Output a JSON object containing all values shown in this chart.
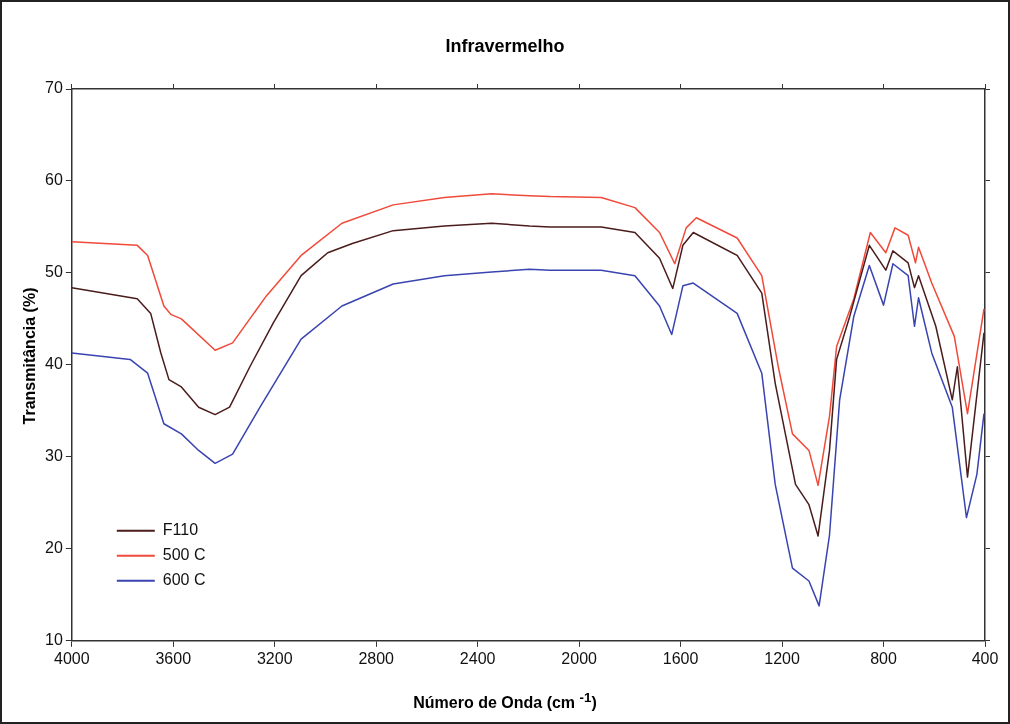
{
  "chart_data": {
    "type": "line",
    "title": "Infravermelho",
    "xlabel": "Número de Onda (cm $^{-1}$)",
    "ylabel": "Transmitância (%)",
    "xlim": [
      4000,
      400
    ],
    "xticks": [
      4000,
      3600,
      3200,
      2800,
      2400,
      2000,
      1600,
      1200,
      800,
      400
    ],
    "ylim": [
      10,
      70
    ],
    "yticks": [
      10,
      20,
      30,
      40,
      50,
      60,
      70
    ],
    "grid": false,
    "legend": "bottom left",
    "marker": "none",
    "line_style": "solid",
    "series": [
      {
        "name": "F110",
        "color": "#4a1c1c",
        "x": [
          4000,
          3742,
          3689,
          3649,
          3617,
          3568,
          3500,
          3435,
          3378,
          3298,
          3205,
          3096,
          2991,
          2894,
          2733,
          2531,
          2345,
          2196,
          2115,
          1913,
          1780,
          1683,
          1631,
          1591,
          1550,
          1377,
          1280,
          1227,
          1147,
          1094,
          1058,
          1013,
          985,
          933,
          856,
          791,
          763,
          703,
          678,
          662,
          594,
          529,
          509,
          469,
          404
        ],
        "values": [
          48.4,
          47.2,
          45.6,
          41.3,
          38.4,
          37.6,
          35.4,
          34.6,
          35.4,
          39.8,
          44.6,
          49.7,
          52.2,
          53.2,
          54.6,
          55.1,
          55.4,
          55.1,
          55.0,
          55.0,
          54.4,
          51.6,
          48.3,
          53.0,
          54.4,
          51.9,
          47.8,
          38.0,
          27.0,
          24.8,
          21.4,
          30.7,
          40.6,
          45.3,
          53.0,
          50.3,
          52.4,
          51.1,
          48.4,
          49.7,
          44.2,
          36.2,
          39.8,
          27.8,
          43.5
        ]
      },
      {
        "name": "500 C",
        "color": "#f04a3a",
        "x": [
          4000,
          3742,
          3701,
          3637,
          3610,
          3568,
          3435,
          3366,
          3233,
          3096,
          2935,
          2733,
          2531,
          2345,
          2196,
          2115,
          1913,
          1780,
          1683,
          1623,
          1578,
          1538,
          1377,
          1280,
          1215,
          1159,
          1094,
          1058,
          1013,
          985,
          917,
          852,
          791,
          755,
          703,
          674,
          662,
          610,
          521,
          469,
          404
        ],
        "values": [
          53.4,
          53.0,
          51.9,
          46.4,
          45.5,
          45.0,
          41.6,
          42.4,
          47.5,
          51.9,
          55.4,
          57.4,
          58.2,
          58.6,
          58.4,
          58.3,
          58.2,
          57.1,
          54.4,
          51.0,
          54.9,
          56.0,
          53.8,
          49.7,
          39.8,
          32.5,
          30.7,
          26.9,
          34.4,
          42.0,
          47.2,
          54.4,
          52.2,
          54.9,
          54.1,
          51.1,
          52.8,
          48.9,
          43.1,
          34.7,
          46.1
        ]
      },
      {
        "name": "600 C",
        "color": "#3a44b0",
        "x": [
          4000,
          3770,
          3701,
          3637,
          3568,
          3500,
          3435,
          3366,
          3258,
          3096,
          2935,
          2733,
          2531,
          2345,
          2196,
          2115,
          1913,
          1780,
          1683,
          1635,
          1591,
          1550,
          1377,
          1280,
          1227,
          1159,
          1094,
          1054,
          1013,
          973,
          917,
          856,
          800,
          763,
          703,
          678,
          662,
          610,
          529,
          473,
          432,
          404
        ],
        "values": [
          41.3,
          40.6,
          39.1,
          33.6,
          32.5,
          30.7,
          29.3,
          30.3,
          35.4,
          42.8,
          46.4,
          48.8,
          49.7,
          50.1,
          50.4,
          50.3,
          50.3,
          49.7,
          46.4,
          43.3,
          48.6,
          48.9,
          45.6,
          39.1,
          27.0,
          17.9,
          16.5,
          13.8,
          21.5,
          36.2,
          45.3,
          50.8,
          46.5,
          51.0,
          49.7,
          44.2,
          47.3,
          41.3,
          35.4,
          23.4,
          28.1,
          34.7
        ]
      }
    ]
  }
}
